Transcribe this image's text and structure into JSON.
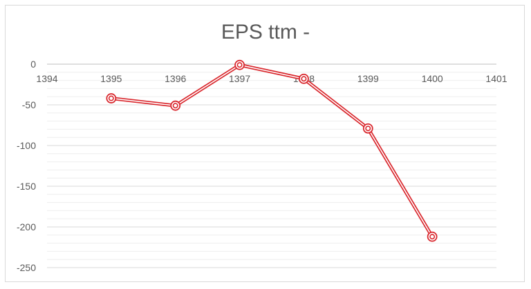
{
  "chart_data": {
    "type": "line",
    "title": "EPS ttm -",
    "xlabel": "",
    "ylabel": "",
    "x_ticks": [
      "1394",
      "1395",
      "1396",
      "1397",
      "1398",
      "1399",
      "1400",
      "1401"
    ],
    "xlim": [
      1394,
      1401
    ],
    "ylim": [
      -250,
      0
    ],
    "y_ticks": [
      "0",
      "-50",
      "-100",
      "-150",
      "-200",
      "-250"
    ],
    "y_tick_values": [
      0,
      -50,
      -100,
      -150,
      -200,
      -250
    ],
    "minor_grid_step": 10,
    "grid": true,
    "legend": "none",
    "series": [
      {
        "x": [
          1395,
          1396,
          1397,
          1398,
          1399,
          1400
        ],
        "y": [
          -42,
          -51,
          -1,
          -18,
          -79,
          -212
        ],
        "color": "#d9272d"
      }
    ]
  }
}
